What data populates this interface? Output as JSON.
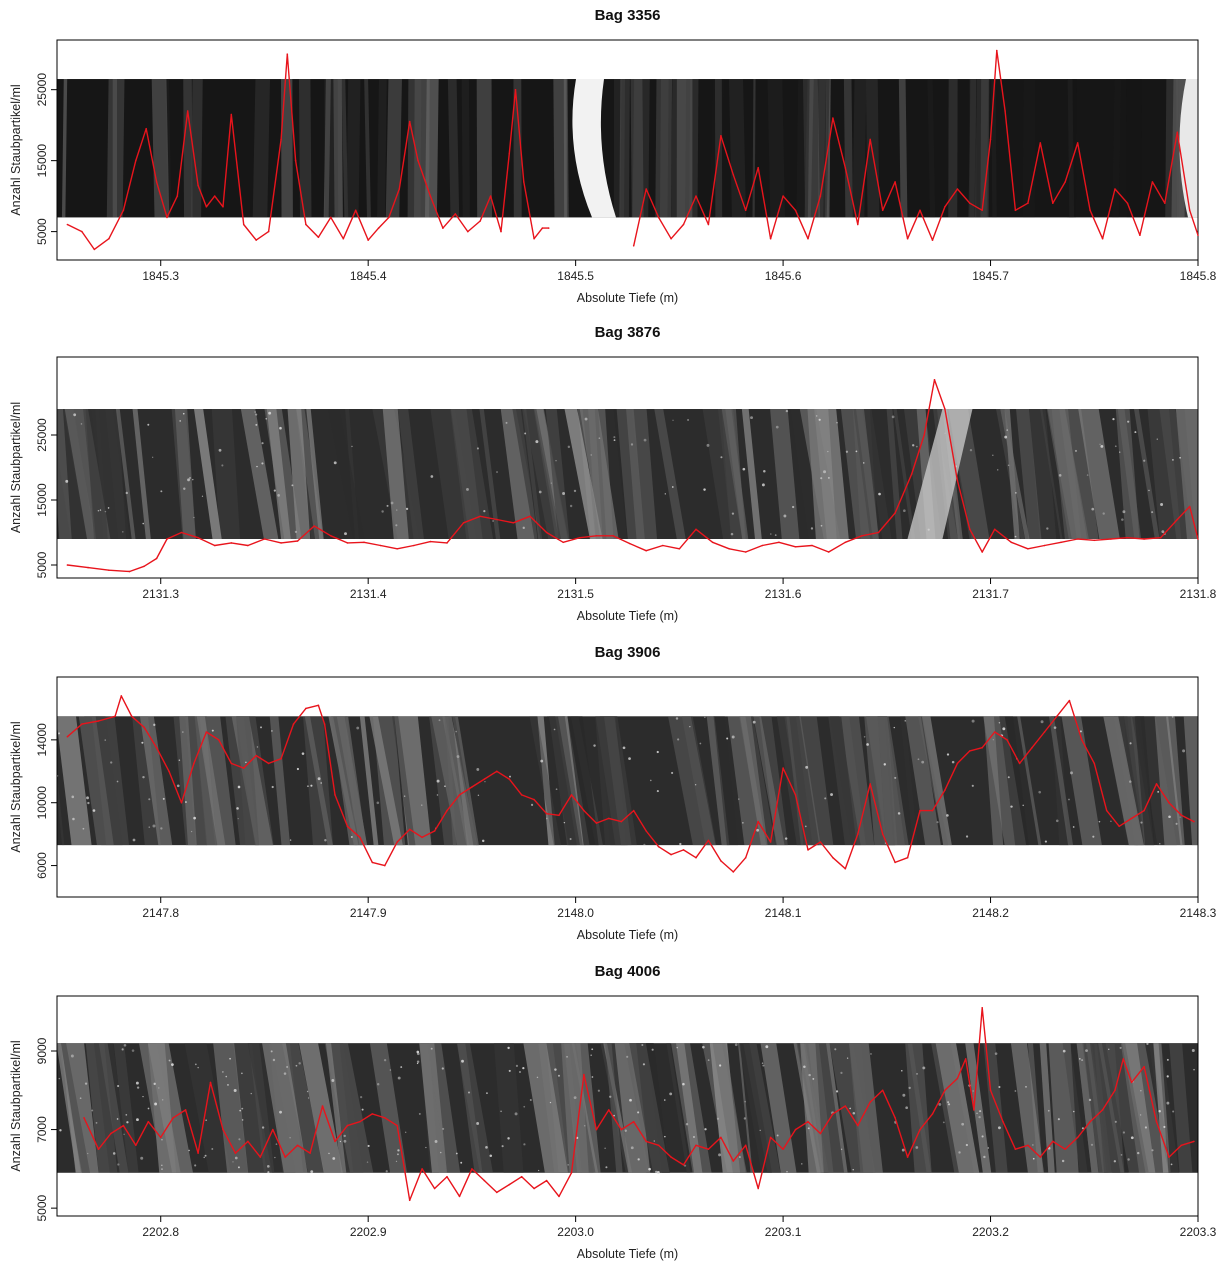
{
  "chart_data": [
    {
      "type": "line",
      "title": "Bag 3356",
      "xlabel": "Absolute Tiefe (m)",
      "ylabel": "Anzahl Staubpartikel/ml",
      "xlim": [
        1845.25,
        1845.8
      ],
      "ylim": [
        1000,
        32000
      ],
      "xticks": [
        1845.3,
        1845.4,
        1845.5,
        1845.6,
        1845.7,
        1845.8
      ],
      "xtick_labels": [
        "1845.3",
        "1845.4",
        "1845.5",
        "1845.6",
        "1845.7",
        "1845.8"
      ],
      "yticks": [
        5000,
        15000,
        25000
      ],
      "ytick_labels": [
        "5000",
        "15000",
        "25000"
      ],
      "band": [
        7000,
        26500
      ],
      "gaps": [
        [
          1845.487,
          1845.528
        ]
      ],
      "series_color": "#e8141c",
      "series": [
        {
          "x": [
            1845.255,
            1845.262,
            1845.268,
            1845.275,
            1845.282,
            1845.288,
            1845.293,
            1845.298,
            1845.303,
            1845.308,
            1845.313,
            1845.318,
            1845.322,
            1845.326,
            1845.33,
            1845.334,
            1845.34,
            1845.346,
            1845.352,
            1845.358,
            1845.361,
            1845.365,
            1845.37,
            1845.376,
            1845.382,
            1845.388,
            1845.394,
            1845.4,
            1845.405,
            1845.41,
            1845.415,
            1845.42,
            1845.424,
            1845.43,
            1845.436,
            1845.442,
            1845.448,
            1845.454,
            1845.459,
            1845.464,
            1845.468,
            1845.471,
            1845.475,
            1845.48,
            1845.484,
            1845.487,
            1845.528,
            1845.534,
            1845.54,
            1845.546,
            1845.552,
            1845.558,
            1845.564,
            1845.57,
            1845.576,
            1845.582,
            1845.588,
            1845.594,
            1845.6,
            1845.606,
            1845.612,
            1845.618,
            1845.624,
            1845.63,
            1845.636,
            1845.642,
            1845.648,
            1845.654,
            1845.66,
            1845.666,
            1845.672,
            1845.678,
            1845.684,
            1845.69,
            1845.696,
            1845.7,
            1845.703,
            1845.707,
            1845.712,
            1845.718,
            1845.724,
            1845.73,
            1845.736,
            1845.742,
            1845.748,
            1845.754,
            1845.76,
            1845.766,
            1845.772,
            1845.778,
            1845.784,
            1845.79,
            1845.796,
            1845.8
          ],
          "y": [
            6000,
            5000,
            2500,
            4000,
            8000,
            15000,
            19500,
            12000,
            7000,
            10000,
            22000,
            11500,
            8500,
            10000,
            8500,
            21500,
            6000,
            3800,
            5000,
            18000,
            30000,
            15000,
            6000,
            4200,
            7000,
            4000,
            8000,
            3800,
            5500,
            7000,
            11000,
            20500,
            15000,
            10000,
            5500,
            7500,
            5000,
            6500,
            10000,
            5000,
            16000,
            25000,
            12000,
            4000,
            5500,
            5500,
            3000,
            11000,
            7000,
            4000,
            6000,
            10000,
            6000,
            18500,
            13000,
            8000,
            14000,
            4000,
            10000,
            8000,
            4000,
            10000,
            21000,
            14000,
            6000,
            18000,
            8000,
            12000,
            4000,
            8000,
            3800,
            8500,
            11000,
            9000,
            8000,
            18000,
            30500,
            22000,
            8000,
            9000,
            17500,
            9000,
            12000,
            17500,
            8000,
            4000,
            11000,
            9000,
            4500,
            12000,
            9000,
            19000,
            8000,
            4500
          ]
        }
      ]
    },
    {
      "type": "line",
      "title": "Bag 3876",
      "xlabel": "Absolute Tiefe (m)",
      "ylabel": "Anzahl Staubpartikel/ml",
      "xlim": [
        2131.25,
        2131.8
      ],
      "ylim": [
        3000,
        37000
      ],
      "xticks": [
        2131.3,
        2131.4,
        2131.5,
        2131.6,
        2131.7,
        2131.8
      ],
      "xtick_labels": [
        "2131.3",
        "2131.4",
        "2131.5",
        "2131.6",
        "2131.7",
        "2131.8"
      ],
      "yticks": [
        5000,
        15000,
        25000
      ],
      "ytick_labels": [
        "5000",
        "15000",
        "25000"
      ],
      "band": [
        9000,
        29000
      ],
      "gaps": [],
      "series_color": "#e8141c",
      "series": [
        {
          "x": [
            2131.255,
            2131.265,
            2131.275,
            2131.285,
            2131.292,
            2131.298,
            2131.303,
            2131.31,
            2131.318,
            2131.326,
            2131.334,
            2131.342,
            2131.35,
            2131.358,
            2131.366,
            2131.374,
            2131.382,
            2131.39,
            2131.398,
            2131.406,
            2131.414,
            2131.422,
            2131.43,
            2131.438,
            2131.446,
            2131.454,
            2131.462,
            2131.47,
            2131.478,
            2131.486,
            2131.494,
            2131.502,
            2131.51,
            2131.518,
            2131.526,
            2131.534,
            2131.542,
            2131.55,
            2131.558,
            2131.566,
            2131.574,
            2131.582,
            2131.59,
            2131.598,
            2131.606,
            2131.614,
            2131.622,
            2131.63,
            2131.638,
            2131.646,
            2131.654,
            2131.662,
            2131.668,
            2131.673,
            2131.678,
            2131.684,
            2131.69,
            2131.696,
            2131.702,
            2131.71,
            2131.718,
            2131.726,
            2131.734,
            2131.742,
            2131.75,
            2131.758,
            2131.766,
            2131.774,
            2131.782,
            2131.79,
            2131.796,
            2131.8
          ],
          "y": [
            5000,
            4600,
            4200,
            4000,
            4800,
            6000,
            9000,
            10000,
            9200,
            8000,
            8400,
            8000,
            9000,
            8400,
            8700,
            11000,
            9500,
            8400,
            8500,
            8000,
            7500,
            8000,
            8600,
            8400,
            11500,
            12500,
            12000,
            11500,
            12500,
            10000,
            8500,
            9200,
            9500,
            9500,
            8300,
            7200,
            8000,
            7500,
            10500,
            8500,
            7500,
            7000,
            8000,
            8500,
            7800,
            8000,
            7000,
            8500,
            9500,
            10000,
            13000,
            19000,
            25000,
            33500,
            29000,
            18000,
            10500,
            7000,
            10500,
            8500,
            7500,
            8000,
            8500,
            9000,
            8800,
            9000,
            9200,
            9000,
            9200,
            12000,
            14000,
            9000
          ]
        }
      ]
    },
    {
      "type": "line",
      "title": "Bag 3906",
      "xlabel": "Absolute Tiefe (m)",
      "ylabel": "Anzahl Staubpartikel/ml",
      "xlim": [
        2147.75,
        2148.3
      ],
      "ylim": [
        4000,
        18000
      ],
      "xticks": [
        2147.8,
        2147.9,
        2148.0,
        2148.1,
        2148.2,
        2148.3
      ],
      "xtick_labels": [
        "2147.8",
        "2147.9",
        "2148.0",
        "2148.1",
        "2148.2",
        "2148.3"
      ],
      "yticks": [
        6000,
        10000,
        14000
      ],
      "ytick_labels": [
        "6000",
        "10000",
        "14000"
      ],
      "band": [
        7300,
        15500
      ],
      "gaps": [],
      "series_color": "#e8141c",
      "series": [
        {
          "x": [
            2147.755,
            2147.762,
            2147.77,
            2147.778,
            2147.781,
            2147.786,
            2147.792,
            2147.798,
            2147.804,
            2147.81,
            2147.816,
            2147.822,
            2147.828,
            2147.834,
            2147.84,
            2147.846,
            2147.852,
            2147.858,
            2147.864,
            2147.87,
            2147.876,
            2147.879,
            2147.884,
            2147.89,
            2147.896,
            2147.902,
            2147.908,
            2147.914,
            2147.92,
            2147.926,
            2147.932,
            2147.938,
            2147.944,
            2147.95,
            2147.956,
            2147.962,
            2147.968,
            2147.974,
            2147.98,
            2147.986,
            2147.992,
            2147.998,
            2148.004,
            2148.01,
            2148.016,
            2148.022,
            2148.028,
            2148.034,
            2148.04,
            2148.046,
            2148.052,
            2148.058,
            2148.064,
            2148.07,
            2148.076,
            2148.082,
            2148.088,
            2148.094,
            2148.1,
            2148.106,
            2148.112,
            2148.118,
            2148.124,
            2148.13,
            2148.136,
            2148.142,
            2148.148,
            2148.154,
            2148.16,
            2148.166,
            2148.172,
            2148.178,
            2148.184,
            2148.19,
            2148.196,
            2148.202,
            2148.208,
            2148.214,
            2148.22,
            2148.226,
            2148.232,
            2148.238,
            2148.244,
            2148.25,
            2148.256,
            2148.262,
            2148.268,
            2148.274,
            2148.28,
            2148.286,
            2148.292,
            2148.298
          ],
          "y": [
            14200,
            15000,
            15200,
            15500,
            16800,
            15500,
            14800,
            13500,
            12000,
            10000,
            12500,
            14500,
            14000,
            12500,
            12200,
            13000,
            12500,
            12800,
            15000,
            16000,
            16200,
            15000,
            10500,
            8500,
            7800,
            6200,
            6000,
            7500,
            8300,
            7800,
            8200,
            9500,
            10500,
            11000,
            11500,
            12000,
            11500,
            10500,
            10200,
            9300,
            9200,
            10500,
            9500,
            8700,
            9000,
            8800,
            9500,
            8200,
            7200,
            6700,
            7000,
            6500,
            7600,
            6300,
            5600,
            6500,
            8800,
            7500,
            12200,
            10500,
            7000,
            7500,
            6500,
            5800,
            8000,
            11200,
            8000,
            6200,
            6500,
            9500,
            9500,
            10800,
            12500,
            13300,
            13500,
            14500,
            14000,
            12500,
            13500,
            14500,
            15500,
            16500,
            14000,
            12500,
            9500,
            8500,
            9000,
            9500,
            11200,
            10000,
            9200,
            8800
          ]
        }
      ]
    },
    {
      "type": "line",
      "title": "Bag 4006",
      "xlabel": "Absolute Tiefe (m)",
      "ylabel": "Anzahl Staubpartikel/ml",
      "xlim": [
        2202.75,
        2203.3
      ],
      "ylim": [
        4800,
        10400
      ],
      "xticks": [
        2202.8,
        2202.9,
        2203.0,
        2203.1,
        2203.2,
        2203.3
      ],
      "xtick_labels": [
        "2202.8",
        "2202.9",
        "2203.0",
        "2203.1",
        "2203.2",
        "2203.3"
      ],
      "yticks": [
        5000,
        7000,
        9000
      ],
      "ytick_labels": [
        "5000",
        "7000",
        "9000"
      ],
      "band": [
        5900,
        9200
      ],
      "gaps": [],
      "series_color": "#e8141c",
      "series": [
        {
          "x": [
            2202.763,
            2202.77,
            2202.776,
            2202.782,
            2202.788,
            2202.794,
            2202.8,
            2202.806,
            2202.812,
            2202.818,
            2202.824,
            2202.83,
            2202.836,
            2202.842,
            2202.848,
            2202.854,
            2202.86,
            2202.866,
            2202.872,
            2202.878,
            2202.884,
            2202.89,
            2202.896,
            2202.902,
            2202.908,
            2202.914,
            2202.92,
            2202.926,
            2202.932,
            2202.938,
            2202.944,
            2202.95,
            2202.956,
            2202.962,
            2202.968,
            2202.974,
            2202.98,
            2202.986,
            2202.992,
            2202.998,
            2203.004,
            2203.01,
            2203.016,
            2203.022,
            2203.028,
            2203.034,
            2203.04,
            2203.046,
            2203.052,
            2203.058,
            2203.064,
            2203.07,
            2203.076,
            2203.082,
            2203.088,
            2203.094,
            2203.1,
            2203.106,
            2203.112,
            2203.118,
            2203.124,
            2203.13,
            2203.136,
            2203.142,
            2203.148,
            2203.154,
            2203.16,
            2203.166,
            2203.172,
            2203.178,
            2203.184,
            2203.188,
            2203.192,
            2203.196,
            2203.2,
            2203.206,
            2203.212,
            2203.218,
            2203.224,
            2203.23,
            2203.236,
            2203.242,
            2203.248,
            2203.254,
            2203.26,
            2203.264,
            2203.268,
            2203.274,
            2203.28,
            2203.286,
            2203.292,
            2203.298
          ],
          "y": [
            7300,
            6500,
            6900,
            7100,
            6600,
            7200,
            6800,
            7300,
            7500,
            6400,
            8200,
            7000,
            6400,
            6700,
            6300,
            7000,
            6300,
            6600,
            6400,
            7600,
            6700,
            7100,
            7200,
            7400,
            7300,
            7100,
            5200,
            6000,
            5500,
            5800,
            5300,
            6000,
            5700,
            5400,
            5600,
            5800,
            5500,
            5700,
            5300,
            5900,
            8400,
            7000,
            7500,
            7000,
            7200,
            6700,
            6600,
            6300,
            6100,
            6600,
            6500,
            6800,
            6200,
            6600,
            5500,
            6800,
            6500,
            7000,
            7200,
            6900,
            7400,
            7600,
            7100,
            7700,
            8000,
            7300,
            6300,
            7000,
            7400,
            8000,
            8300,
            8800,
            7500,
            10100,
            8000,
            7200,
            6500,
            6600,
            6300,
            6700,
            6500,
            6800,
            7200,
            7500,
            8000,
            8800,
            8200,
            8600,
            7200,
            6300,
            6600,
            6700
          ]
        }
      ]
    }
  ]
}
